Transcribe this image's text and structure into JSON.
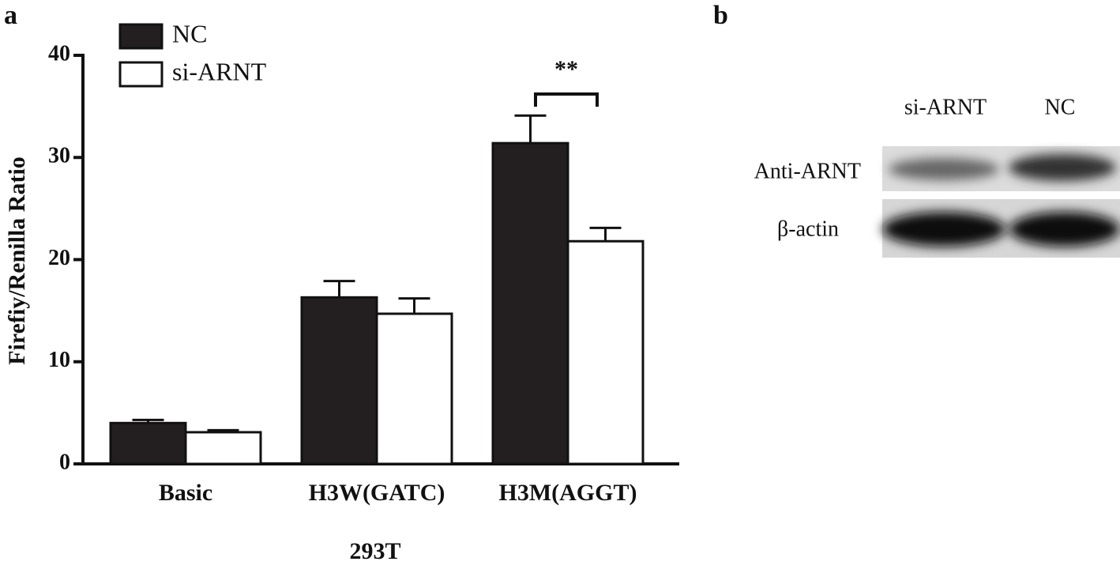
{
  "chart_data": {
    "type": "bar",
    "panel_label": "a",
    "y_label": "Firefiy/Renilla Ratio",
    "x_label": "293T",
    "categories": [
      "Basic",
      "H3W(GATC)",
      "H3M(AGGT)"
    ],
    "series": [
      {
        "name": "NC",
        "color": "#231f20",
        "values": [
          4.0,
          16.3,
          31.4
        ],
        "errors": [
          0.3,
          1.6,
          2.7
        ]
      },
      {
        "name": "si-ARNT",
        "color": "#ffffff",
        "values": [
          3.1,
          14.7,
          21.8
        ],
        "errors": [
          0.2,
          1.5,
          1.3
        ]
      }
    ],
    "ylim": [
      0,
      40
    ],
    "yticks": [
      0,
      10,
      20,
      30,
      40
    ],
    "grid": false,
    "annotation": "**"
  },
  "blot": {
    "panel_label": "b",
    "lanes": [
      "si-ARNT",
      "NC"
    ],
    "rows": [
      "Anti-ARNT",
      "β-actin"
    ]
  }
}
